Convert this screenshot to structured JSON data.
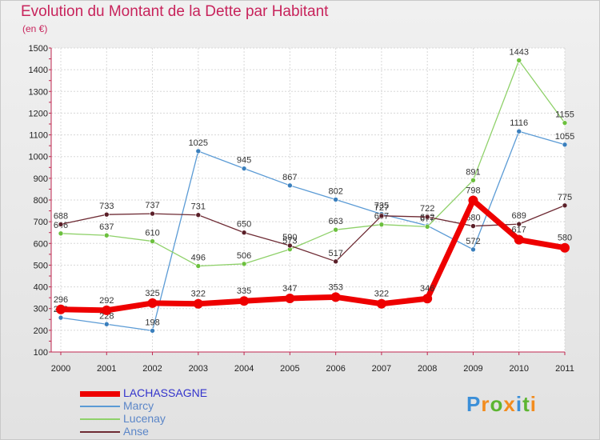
{
  "chart_data": {
    "type": "line",
    "title": "Evolution du Montant de la Dette par Habitant",
    "subtitle": "(en €)",
    "x": [
      "2000",
      "2001",
      "2002",
      "2003",
      "2004",
      "2005",
      "2006",
      "2007",
      "2008",
      "2009",
      "2010",
      "2011"
    ],
    "ylim": [
      100,
      1500
    ],
    "yticks": [
      100,
      200,
      300,
      400,
      500,
      600,
      700,
      800,
      900,
      1000,
      1100,
      1200,
      1300,
      1400,
      1500
    ],
    "grid": true,
    "legend_position": "bottom-left",
    "series": [
      {
        "name": "Marcy",
        "color": "#5b9bd5",
        "marker": "#3a7fbd",
        "values": [
          258,
          228,
          198,
          1025,
          945,
          867,
          802,
          735,
          682,
          572,
          1116,
          1055
        ]
      },
      {
        "name": "Lucenay",
        "color": "#8fd16a",
        "marker": "#6cc03e",
        "values": [
          646,
          637,
          610,
          496,
          506,
          573,
          663,
          687,
          677,
          891,
          1443,
          1155
        ]
      },
      {
        "name": "Anse",
        "color": "#6e2b34",
        "marker": "#5a1f28",
        "values": [
          688,
          733,
          737,
          731,
          650,
          590,
          517,
          727,
          722,
          680,
          689,
          775
        ]
      },
      {
        "name": "LACHASSAGNE",
        "color": "#ee0000",
        "marker": "#ee0000",
        "values": [
          296,
          292,
          325,
          322,
          335,
          347,
          353,
          322,
          346,
          798,
          617,
          580
        ]
      }
    ]
  },
  "logo": {
    "letters": [
      {
        "char": "P",
        "color": "#3b8fd8"
      },
      {
        "char": "r",
        "color": "#f28c1e"
      },
      {
        "char": "o",
        "color": "#5cb531"
      },
      {
        "char": "x",
        "color": "#f28c1e"
      },
      {
        "char": "i",
        "color": "#3b8fd8"
      },
      {
        "char": "t",
        "color": "#5cb531"
      },
      {
        "char": "i",
        "color": "#f28c1e"
      }
    ]
  }
}
